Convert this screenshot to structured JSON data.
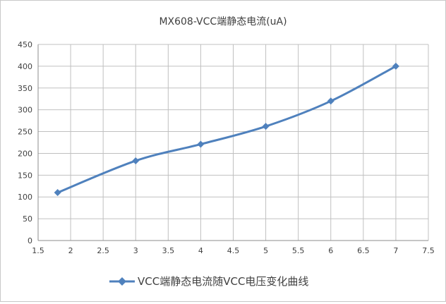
{
  "chart_data": {
    "type": "line",
    "title": "MX608-VCC端静态电流(uA)",
    "xlabel": "",
    "ylabel": "",
    "xlim": [
      1.5,
      7.5
    ],
    "ylim": [
      0,
      450
    ],
    "x_ticks": [
      "1.5",
      "2",
      "2.5",
      "3",
      "3.5",
      "4",
      "4.5",
      "5",
      "5.5",
      "6",
      "6.5",
      "7",
      "7.5"
    ],
    "y_ticks": [
      "0",
      "50",
      "100",
      "150",
      "200",
      "250",
      "300",
      "350",
      "400",
      "450"
    ],
    "grid": true,
    "legend_position": "bottom",
    "series": [
      {
        "name": "VCC端静态电流随VCC电压变化曲线",
        "color": "#4f81bd",
        "marker": "diamond",
        "x": [
          1.8,
          3,
          4,
          5,
          6,
          7
        ],
        "y": [
          110,
          183,
          221,
          262,
          320,
          400
        ]
      }
    ]
  }
}
